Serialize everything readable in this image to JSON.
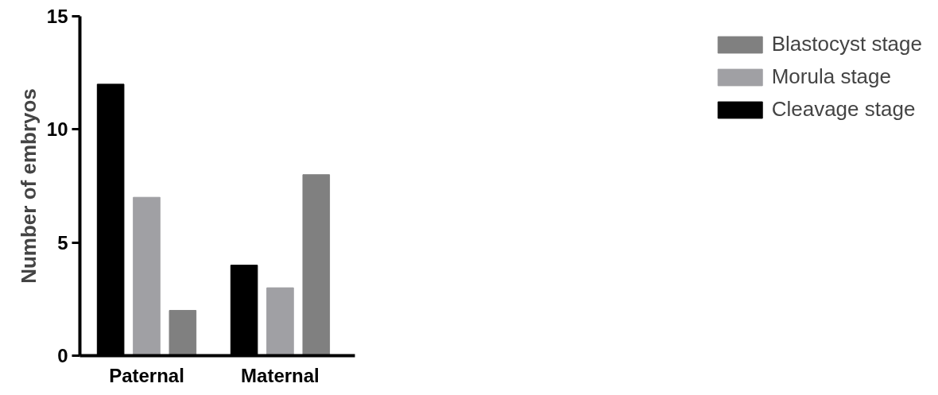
{
  "chart_data": {
    "type": "bar",
    "ylabel": "Number of embryos",
    "categories": [
      "Paternal",
      "Maternal"
    ],
    "series": [
      {
        "name": "Cleavage stage",
        "color": "#000000",
        "values": [
          12,
          4
        ]
      },
      {
        "name": "Morula stage",
        "color": "#a0a0a4",
        "values": [
          7,
          3
        ]
      },
      {
        "name": "Blastocyst stage",
        "color": "#808080",
        "values": [
          2,
          8
        ]
      }
    ],
    "ylim": [
      0,
      15
    ],
    "yticks": [
      0,
      5,
      10,
      15
    ],
    "grid": false,
    "legend": "right"
  }
}
